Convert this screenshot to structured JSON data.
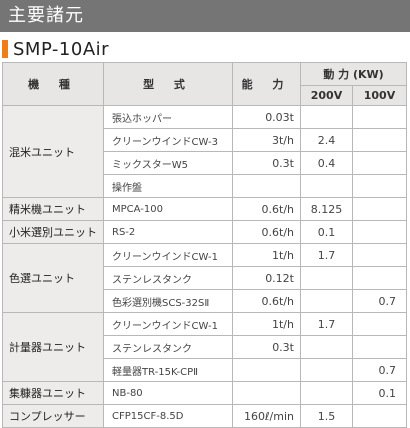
{
  "section_title": "主要諸元",
  "model_title": "SMP-10Air",
  "accent_color": "#ef7d1a",
  "header": {
    "machine": "機 種",
    "model": "型 式",
    "capacity": "能 力",
    "power": "動 力 (KW)",
    "v200": "200V",
    "v100": "100V"
  },
  "groups": [
    {
      "name": "混米ユニット",
      "rows": [
        {
          "model": "張込ホッパー",
          "capacity": "0.03t",
          "p200": "",
          "p100": ""
        },
        {
          "model": "クリーンウインドCW-3",
          "capacity": "3t/h",
          "p200": "2.4",
          "p100": ""
        },
        {
          "model": "ミックスターW5",
          "capacity": "0.3t",
          "p200": "0.4",
          "p100": ""
        },
        {
          "model": "操作盤",
          "capacity": "",
          "p200": "",
          "p100": ""
        }
      ]
    },
    {
      "name": "精米機ユニット",
      "rows": [
        {
          "model": "MPCA-100",
          "capacity": "0.6t/h",
          "p200": "8.125",
          "p100": ""
        }
      ]
    },
    {
      "name": "小米選別ユニット",
      "rows": [
        {
          "model": "RS-2",
          "capacity": "0.6t/h",
          "p200": "0.1",
          "p100": ""
        }
      ]
    },
    {
      "name": "色選ユニット",
      "rows": [
        {
          "model": "クリーンウインドCW-1",
          "capacity": "1t/h",
          "p200": "1.7",
          "p100": ""
        },
        {
          "model": "ステンレスタンク",
          "capacity": "0.12t",
          "p200": "",
          "p100": ""
        },
        {
          "model": "色彩選別機SCS-32SⅡ",
          "capacity": "0.6t/h",
          "p200": "",
          "p100": "0.7"
        }
      ]
    },
    {
      "name": "計量器ユニット",
      "rows": [
        {
          "model": "クリーンウインドCW-1",
          "capacity": "1t/h",
          "p200": "1.7",
          "p100": ""
        },
        {
          "model": "ステンレスタンク",
          "capacity": "0.3t",
          "p200": "",
          "p100": ""
        },
        {
          "model": "軽量器TR-15K-CPⅡ",
          "capacity": "",
          "p200": "",
          "p100": "0.7"
        }
      ]
    },
    {
      "name": "集糠器ユニット",
      "rows": [
        {
          "model": "NB-80",
          "capacity": "",
          "p200": "",
          "p100": "0.1"
        }
      ]
    },
    {
      "name": "コンプレッサー",
      "rows": [
        {
          "model": "CFP15CF-8.5D",
          "capacity": "160ℓ/min",
          "p200": "1.5",
          "p100": ""
        }
      ]
    }
  ]
}
